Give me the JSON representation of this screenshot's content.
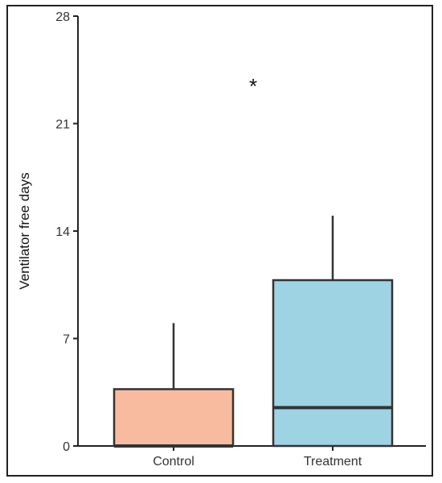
{
  "chart_data": {
    "type": "box",
    "ylabel": "Ventilator free days",
    "xlabel": "",
    "ylim": [
      0,
      28
    ],
    "yticks": [
      0,
      7,
      14,
      21,
      28
    ],
    "categories": [
      "Control",
      "Treatment"
    ],
    "boxes": [
      {
        "name": "Control",
        "min": 0,
        "q1": 0,
        "median": 0,
        "q3": 3.7,
        "max": 8.0,
        "color": "#F8BBA0"
      },
      {
        "name": "Treatment",
        "min": 0,
        "q1": 0,
        "median": 2.5,
        "q3": 10.8,
        "max": 15.0,
        "color": "#9DD3E3"
      }
    ],
    "annotations": [
      {
        "text": "*",
        "x": 1.5,
        "y": 23.5
      }
    ],
    "grid": false
  }
}
